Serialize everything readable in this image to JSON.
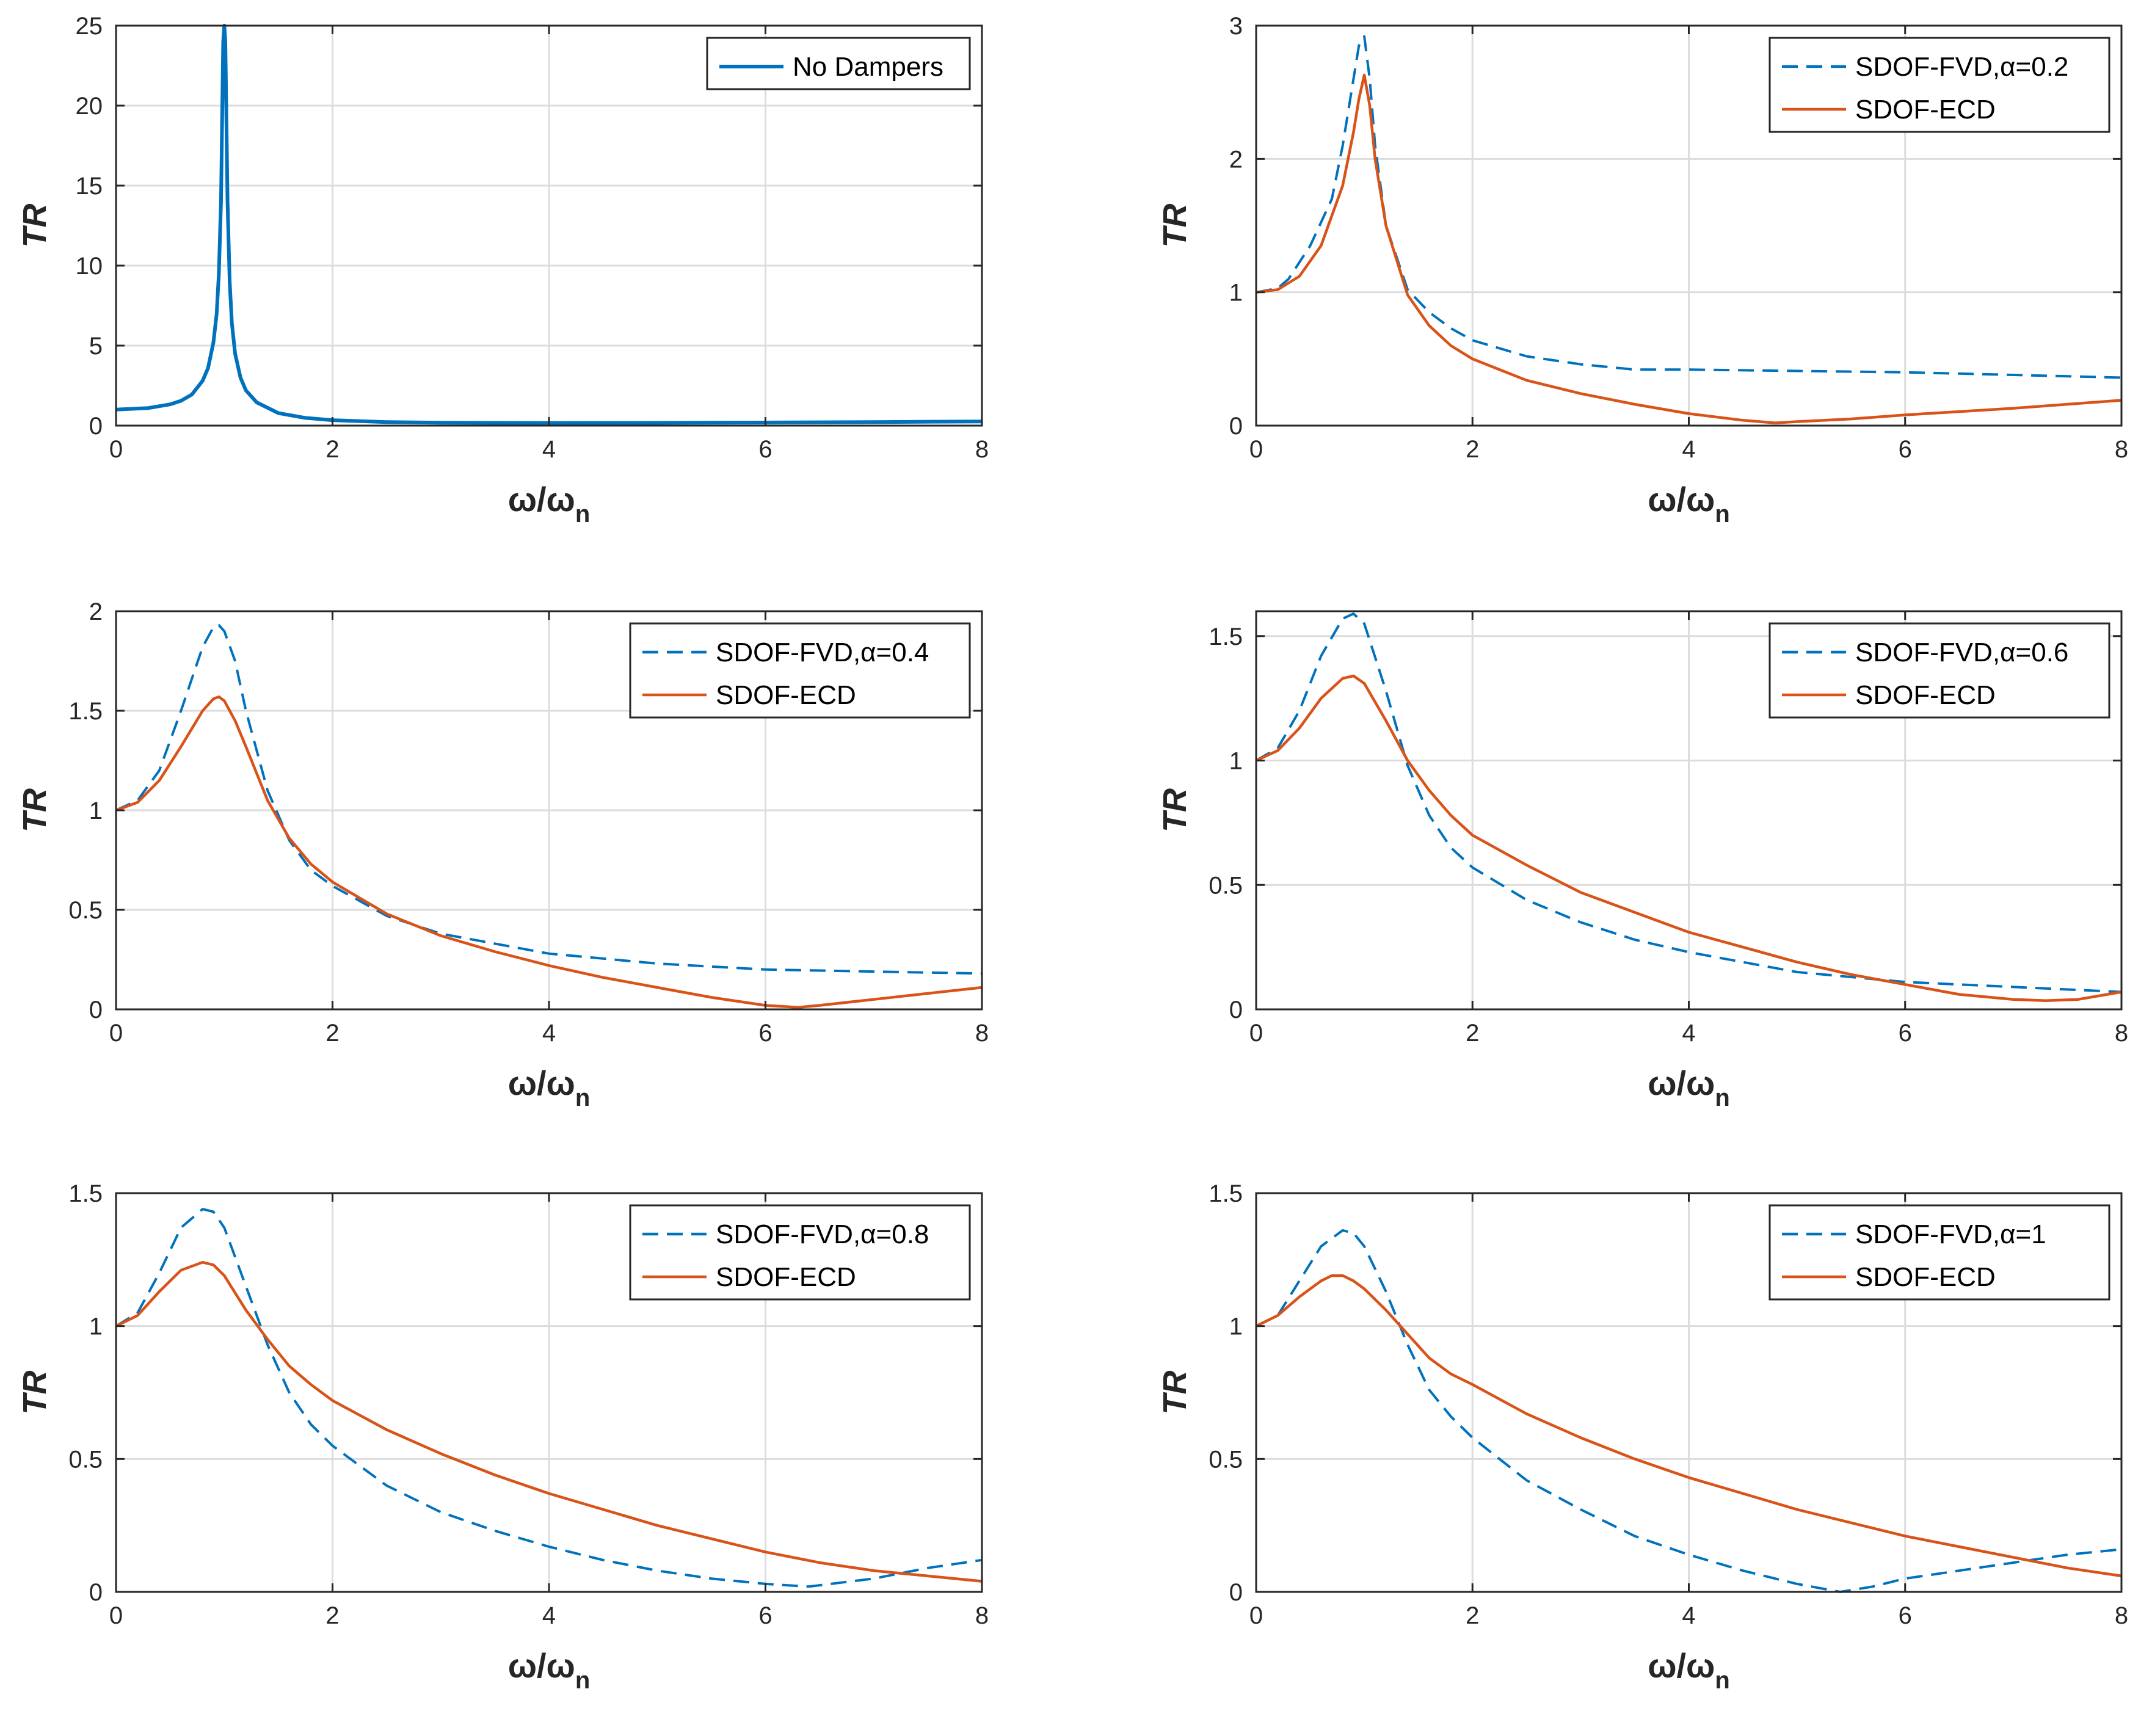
{
  "colors": {
    "blue": "#0072BD",
    "orange": "#D95319",
    "axis": "#262626",
    "grid": "#dcdcdc"
  },
  "chart_data": [
    {
      "id": "p1",
      "type": "line",
      "xlabel": "ω/ω",
      "xlabel_sub": "n",
      "ylabel": "TR",
      "xlim": [
        0,
        8
      ],
      "ylim": [
        0,
        25
      ],
      "xticks": [
        "0",
        "2",
        "4",
        "6",
        "8"
      ],
      "xtick_values": [
        0,
        2,
        4,
        6,
        8
      ],
      "yticks": [
        "0",
        "5",
        "10",
        "15",
        "20",
        "25"
      ],
      "ytick_values": [
        0,
        5,
        10,
        15,
        20,
        25
      ],
      "grid": true,
      "legend": "top-right",
      "series": [
        {
          "name": "No Dampers",
          "style": "solid-thick",
          "color": "#0072BD",
          "x": [
            0,
            0.3,
            0.5,
            0.6,
            0.7,
            0.8,
            0.85,
            0.9,
            0.93,
            0.95,
            0.97,
            0.98,
            0.99,
            1.0,
            1.01,
            1.02,
            1.03,
            1.05,
            1.07,
            1.1,
            1.15,
            1.2,
            1.3,
            1.5,
            1.75,
            2.0,
            2.5,
            3,
            4,
            5,
            6,
            7,
            8
          ],
          "y": [
            1.0,
            1.1,
            1.33,
            1.55,
            1.94,
            2.8,
            3.6,
            5.2,
            7.0,
            9.5,
            14,
            19,
            24,
            25,
            24,
            19,
            14,
            9.0,
            6.4,
            4.5,
            3.0,
            2.2,
            1.45,
            0.78,
            0.48,
            0.34,
            0.22,
            0.18,
            0.16,
            0.17,
            0.19,
            0.22,
            0.26
          ]
        }
      ]
    },
    {
      "id": "p2",
      "type": "line",
      "xlabel": "ω/ω",
      "xlabel_sub": "n",
      "ylabel": "TR",
      "xlim": [
        0,
        8
      ],
      "ylim": [
        0,
        3
      ],
      "xticks": [
        "0",
        "2",
        "4",
        "6",
        "8"
      ],
      "xtick_values": [
        0,
        2,
        4,
        6,
        8
      ],
      "yticks": [
        "0",
        "1",
        "2",
        "3"
      ],
      "ytick_values": [
        0,
        1,
        2,
        3
      ],
      "grid": true,
      "legend": "top-right",
      "series": [
        {
          "name": "SDOF-FVD,α=0.2",
          "style": "dashed",
          "color": "#0072BD",
          "x": [
            0,
            0.2,
            0.3,
            0.5,
            0.7,
            0.8,
            0.9,
            0.95,
            1.0,
            1.05,
            1.1,
            1.2,
            1.4,
            1.6,
            1.8,
            2.0,
            2.5,
            3,
            3.5,
            4,
            5,
            6,
            7,
            8
          ],
          "y": [
            1.0,
            1.03,
            1.1,
            1.35,
            1.7,
            2.1,
            2.6,
            2.85,
            2.92,
            2.6,
            2.1,
            1.5,
            1.02,
            0.85,
            0.73,
            0.64,
            0.52,
            0.46,
            0.42,
            0.42,
            0.41,
            0.4,
            0.38,
            0.36
          ]
        },
        {
          "name": "SDOF-ECD",
          "style": "solid",
          "color": "#D95319",
          "x": [
            0,
            0.2,
            0.4,
            0.6,
            0.8,
            0.9,
            0.95,
            1.0,
            1.05,
            1.1,
            1.2,
            1.4,
            1.6,
            1.8,
            2.0,
            2.5,
            3,
            3.5,
            4,
            4.5,
            4.8,
            5,
            5.5,
            6,
            7,
            8
          ],
          "y": [
            1.0,
            1.02,
            1.12,
            1.35,
            1.8,
            2.2,
            2.45,
            2.63,
            2.4,
            2.0,
            1.5,
            0.98,
            0.75,
            0.6,
            0.5,
            0.34,
            0.24,
            0.16,
            0.09,
            0.04,
            0.02,
            0.03,
            0.05,
            0.08,
            0.13,
            0.19
          ]
        }
      ]
    },
    {
      "id": "p3",
      "type": "line",
      "xlabel": "ω/ω",
      "xlabel_sub": "n",
      "ylabel": "TR",
      "xlim": [
        0,
        8
      ],
      "ylim": [
        0,
        2
      ],
      "xticks": [
        "0",
        "2",
        "4",
        "6",
        "8"
      ],
      "xtick_values": [
        0,
        2,
        4,
        6,
        8
      ],
      "yticks": [
        "0",
        "0.5",
        "1",
        "1.5",
        "2"
      ],
      "ytick_values": [
        0,
        0.5,
        1,
        1.5,
        2
      ],
      "grid": true,
      "legend": "top-right",
      "series": [
        {
          "name": "SDOF-FVD,α=0.4",
          "style": "dashed",
          "color": "#0072BD",
          "x": [
            0,
            0.2,
            0.4,
            0.6,
            0.8,
            0.9,
            0.95,
            1.0,
            1.1,
            1.2,
            1.4,
            1.6,
            1.8,
            2.0,
            2.5,
            3,
            3.5,
            4,
            5,
            6,
            7,
            8
          ],
          "y": [
            1.0,
            1.05,
            1.2,
            1.5,
            1.82,
            1.92,
            1.93,
            1.9,
            1.75,
            1.5,
            1.1,
            0.85,
            0.7,
            0.62,
            0.47,
            0.38,
            0.33,
            0.28,
            0.23,
            0.2,
            0.19,
            0.18
          ]
        },
        {
          "name": "SDOF-ECD",
          "style": "solid",
          "color": "#D95319",
          "x": [
            0,
            0.2,
            0.4,
            0.6,
            0.8,
            0.9,
            0.95,
            1.0,
            1.1,
            1.2,
            1.4,
            1.6,
            1.8,
            2.0,
            2.5,
            3,
            3.5,
            4,
            4.5,
            5,
            5.5,
            6,
            6.3,
            6.5,
            7,
            8
          ],
          "y": [
            1.0,
            1.04,
            1.15,
            1.32,
            1.5,
            1.56,
            1.57,
            1.55,
            1.45,
            1.32,
            1.05,
            0.86,
            0.73,
            0.64,
            0.48,
            0.37,
            0.29,
            0.22,
            0.16,
            0.11,
            0.06,
            0.02,
            0.01,
            0.02,
            0.05,
            0.11
          ]
        }
      ]
    },
    {
      "id": "p4",
      "type": "line",
      "xlabel": "ω/ω",
      "xlabel_sub": "n",
      "ylabel": "TR",
      "xlim": [
        0,
        8
      ],
      "ylim": [
        0,
        1.6
      ],
      "xticks": [
        "0",
        "2",
        "4",
        "6",
        "8"
      ],
      "xtick_values": [
        0,
        2,
        4,
        6,
        8
      ],
      "yticks": [
        "0",
        "0.5",
        "1",
        "1.5"
      ],
      "ytick_values": [
        0,
        0.5,
        1,
        1.5
      ],
      "grid": true,
      "legend": "top-right",
      "series": [
        {
          "name": "SDOF-FVD,α=0.6",
          "style": "dashed",
          "color": "#0072BD",
          "x": [
            0,
            0.2,
            0.4,
            0.6,
            0.8,
            0.9,
            1.0,
            1.2,
            1.4,
            1.6,
            1.8,
            2.0,
            2.5,
            3,
            3.5,
            4,
            5,
            6,
            7,
            8
          ],
          "y": [
            1.0,
            1.05,
            1.2,
            1.42,
            1.57,
            1.59,
            1.55,
            1.28,
            0.98,
            0.78,
            0.65,
            0.57,
            0.44,
            0.35,
            0.28,
            0.23,
            0.15,
            0.11,
            0.09,
            0.07
          ]
        },
        {
          "name": "SDOF-ECD",
          "style": "solid",
          "color": "#D95319",
          "x": [
            0,
            0.2,
            0.4,
            0.6,
            0.8,
            0.9,
            1.0,
            1.2,
            1.4,
            1.6,
            1.8,
            2.0,
            2.5,
            3,
            3.5,
            4,
            4.5,
            5,
            5.5,
            6,
            6.5,
            7,
            7.3,
            7.6,
            8
          ],
          "y": [
            1.0,
            1.04,
            1.13,
            1.25,
            1.33,
            1.34,
            1.31,
            1.16,
            1.0,
            0.88,
            0.78,
            0.7,
            0.58,
            0.47,
            0.39,
            0.31,
            0.25,
            0.19,
            0.14,
            0.1,
            0.06,
            0.04,
            0.035,
            0.04,
            0.07
          ]
        }
      ]
    },
    {
      "id": "p5",
      "type": "line",
      "xlabel": "ω/ω",
      "xlabel_sub": "n",
      "ylabel": "TR",
      "xlim": [
        0,
        8
      ],
      "ylim": [
        0,
        1.5
      ],
      "xticks": [
        "0",
        "2",
        "4",
        "6",
        "8"
      ],
      "xtick_values": [
        0,
        2,
        4,
        6,
        8
      ],
      "yticks": [
        "0",
        "0.5",
        "1",
        "1.5"
      ],
      "ytick_values": [
        0,
        0.5,
        1,
        1.5
      ],
      "grid": true,
      "legend": "top-right",
      "series": [
        {
          "name": "SDOF-FVD,α=0.8",
          "style": "dashed",
          "color": "#0072BD",
          "x": [
            0,
            0.2,
            0.4,
            0.6,
            0.8,
            0.9,
            1.0,
            1.2,
            1.4,
            1.6,
            1.8,
            2.0,
            2.5,
            3,
            3.5,
            4,
            4.5,
            5,
            5.5,
            6,
            6.4,
            7,
            7.5,
            8
          ],
          "y": [
            1.0,
            1.05,
            1.2,
            1.37,
            1.44,
            1.43,
            1.37,
            1.15,
            0.93,
            0.75,
            0.63,
            0.55,
            0.4,
            0.3,
            0.23,
            0.17,
            0.12,
            0.08,
            0.05,
            0.03,
            0.02,
            0.05,
            0.09,
            0.12
          ]
        },
        {
          "name": "SDOF-ECD",
          "style": "solid",
          "color": "#D95319",
          "x": [
            0,
            0.2,
            0.4,
            0.6,
            0.8,
            0.9,
            1.0,
            1.2,
            1.4,
            1.6,
            1.8,
            2.0,
            2.5,
            3,
            3.5,
            4,
            4.5,
            5,
            5.5,
            6,
            6.5,
            7,
            7.5,
            8
          ],
          "y": [
            1.0,
            1.04,
            1.13,
            1.21,
            1.24,
            1.23,
            1.19,
            1.06,
            0.95,
            0.85,
            0.78,
            0.72,
            0.61,
            0.52,
            0.44,
            0.37,
            0.31,
            0.25,
            0.2,
            0.15,
            0.11,
            0.08,
            0.06,
            0.04
          ]
        }
      ]
    },
    {
      "id": "p6",
      "type": "line",
      "xlabel": "ω/ω",
      "xlabel_sub": "n",
      "ylabel": "TR",
      "xlim": [
        0,
        8
      ],
      "ylim": [
        0,
        1.5
      ],
      "xticks": [
        "0",
        "2",
        "4",
        "6",
        "8"
      ],
      "xtick_values": [
        0,
        2,
        4,
        6,
        8
      ],
      "yticks": [
        "0",
        "0.5",
        "1",
        "1.5"
      ],
      "ytick_values": [
        0,
        0.5,
        1,
        1.5
      ],
      "grid": true,
      "legend": "top-right",
      "series": [
        {
          "name": "SDOF-FVD,α=1",
          "style": "dashed",
          "color": "#0072BD",
          "x": [
            0,
            0.2,
            0.4,
            0.6,
            0.8,
            0.9,
            1.0,
            1.2,
            1.4,
            1.6,
            1.8,
            2.0,
            2.5,
            3,
            3.5,
            4,
            4.5,
            5,
            5.4,
            5.7,
            6,
            6.5,
            7,
            7.5,
            8
          ],
          "y": [
            1.0,
            1.04,
            1.17,
            1.3,
            1.36,
            1.35,
            1.3,
            1.13,
            0.93,
            0.76,
            0.66,
            0.58,
            0.42,
            0.31,
            0.21,
            0.14,
            0.08,
            0.03,
            0.0,
            0.02,
            0.05,
            0.08,
            0.11,
            0.14,
            0.16
          ]
        },
        {
          "name": "SDOF-ECD",
          "style": "solid",
          "color": "#D95319",
          "x": [
            0,
            0.2,
            0.4,
            0.6,
            0.7,
            0.8,
            0.9,
            1.0,
            1.2,
            1.4,
            1.6,
            1.8,
            2.0,
            2.5,
            3,
            3.5,
            4,
            4.5,
            5,
            5.5,
            6,
            6.5,
            7,
            7.5,
            8
          ],
          "y": [
            1.0,
            1.04,
            1.11,
            1.17,
            1.19,
            1.19,
            1.17,
            1.14,
            1.06,
            0.97,
            0.88,
            0.82,
            0.78,
            0.67,
            0.58,
            0.5,
            0.43,
            0.37,
            0.31,
            0.26,
            0.21,
            0.17,
            0.13,
            0.09,
            0.06
          ]
        }
      ]
    }
  ]
}
